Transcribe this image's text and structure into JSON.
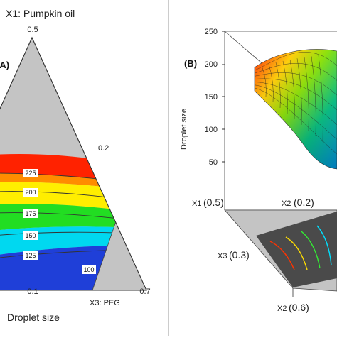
{
  "left_panel": {
    "panel_label": "(A)",
    "vertex_top_label": "X1: Pumpkin oil",
    "vertex_top_value": "0.5",
    "side_tick_right": "0.2",
    "bottom_tick_left": "0.1",
    "bottom_tick_right": "0.7",
    "vertex_right_label": "X3: PEG",
    "response_label": "Droplet size"
  },
  "right_panel": {
    "panel_label": "(B)",
    "z_axis_title": "Droplet size",
    "z_ticks": [
      "250",
      "200",
      "150",
      "100",
      "50"
    ],
    "x1_label": "X1",
    "x1_value": "(0.5)",
    "x2_label_a": "X2",
    "x2_value_a": "(0.2)",
    "x3_label": "X3",
    "x3_value": "(0.3)",
    "x2_label_b": "X2",
    "x2_value_b": "(0.6)"
  },
  "colors": {
    "mask_gray": "#c4c4c4",
    "band_red": "#ff2200",
    "band_orange": "#ff8c00",
    "band_yellow": "#ffee00",
    "band_green": "#22dd22",
    "band_cyan": "#00d8f0",
    "band_blue": "#1f3fd8",
    "floor_dark": "#4a4a4a"
  },
  "chart_data": [
    {
      "type": "heatmap",
      "subtype": "ternary-contour",
      "response": "Droplet size",
      "contour_levels": [
        100,
        125,
        150,
        175,
        200,
        225
      ],
      "contour_labels": [
        "225",
        "200",
        "175",
        "150",
        "125",
        "100"
      ],
      "bands": [
        {
          "from": 225,
          "to": 250,
          "color": "red"
        },
        {
          "from": 200,
          "to": 225,
          "color": "orange-yellow"
        },
        {
          "from": 175,
          "to": 200,
          "color": "yellow"
        },
        {
          "from": 150,
          "to": 175,
          "color": "green"
        },
        {
          "from": 125,
          "to": 150,
          "color": "cyan"
        },
        {
          "from": 100,
          "to": 125,
          "color": "blue"
        }
      ]
    },
    {
      "type": "area",
      "subtype": "3d-response-surface",
      "z_title": "Droplet size",
      "z_ticks": [
        50,
        100,
        150,
        200,
        250
      ],
      "zlim": [
        50,
        250
      ],
      "surface_rows": [
        [
          215,
          205,
          190,
          170,
          150,
          130
        ],
        [
          200,
          190,
          175,
          158,
          140,
          122
        ],
        [
          185,
          172,
          158,
          142,
          126,
          110
        ],
        [
          165,
          152,
          140,
          126,
          112,
          100
        ],
        [
          140,
          130,
          120,
          110,
          100,
          95
        ]
      ]
    }
  ]
}
